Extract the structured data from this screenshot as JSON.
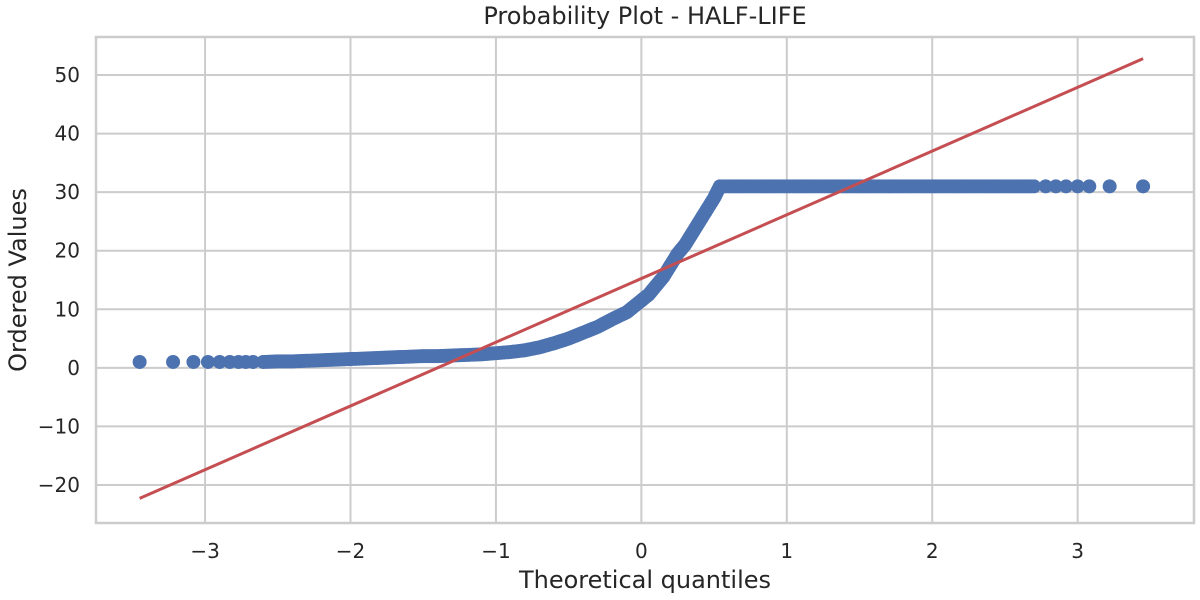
{
  "chart_data": {
    "type": "scatter",
    "title": "Probability Plot - HALF-LIFE",
    "xlabel": "Theoretical quantiles",
    "ylabel": "Ordered Values",
    "xlim": [
      -3.75,
      3.8
    ],
    "ylim": [
      -26.5,
      56.5
    ],
    "xticks": [
      -3,
      -2,
      -1,
      0,
      1,
      2,
      3
    ],
    "yticks": [
      -20,
      -10,
      0,
      10,
      20,
      30,
      40,
      50
    ],
    "grid": true,
    "legend": "none",
    "colors": {
      "points": "#4c72b0",
      "fit_line": "#c44e52",
      "grid": "#cccccc",
      "text": "#262626"
    },
    "series": [
      {
        "kind": "points",
        "x": [
          -3.45,
          -3.22,
          -3.08,
          -2.98,
          -2.9,
          -2.83,
          -2.77,
          -2.72,
          -2.67,
          -2.6,
          -2.5,
          -2.4,
          -2.3,
          -2.2,
          -2.1,
          -2.0,
          -1.9,
          -1.8,
          -1.7,
          -1.6,
          -1.5,
          -1.4,
          -1.3,
          -1.2,
          -1.1,
          -1.0,
          -0.9,
          -0.8,
          -0.7,
          -0.6,
          -0.5,
          -0.4,
          -0.3,
          -0.2,
          -0.1,
          -0.05,
          0.0,
          0.05,
          0.1,
          0.15,
          0.2,
          0.25,
          0.3,
          0.35,
          0.4,
          0.45,
          0.5,
          0.52,
          0.54,
          0.6,
          0.7,
          0.8,
          0.9,
          1.0,
          1.2,
          1.4,
          1.6,
          1.8,
          2.0,
          2.2,
          2.4,
          2.6,
          2.7,
          2.78,
          2.85,
          2.92,
          3.0,
          3.08,
          3.22,
          3.45
        ],
        "y": [
          1.0,
          1.0,
          1.0,
          1.0,
          1.0,
          1.0,
          1.0,
          1.0,
          1.0,
          1.0,
          1.1,
          1.1,
          1.2,
          1.3,
          1.4,
          1.5,
          1.6,
          1.7,
          1.8,
          1.9,
          2.0,
          2.0,
          2.1,
          2.2,
          2.3,
          2.5,
          2.7,
          3.0,
          3.5,
          4.2,
          5.0,
          6.0,
          7.0,
          8.3,
          9.5,
          10.5,
          11.5,
          12.5,
          14.0,
          15.5,
          17.5,
          19.5,
          21.0,
          23.0,
          25.0,
          27.0,
          29.0,
          30.0,
          31.0,
          31.0,
          31.0,
          31.0,
          31.0,
          31.0,
          31.0,
          31.0,
          31.0,
          31.0,
          31.0,
          31.0,
          31.0,
          31.0,
          31.0,
          31.0,
          31.0,
          31.0,
          31.0,
          31.0,
          31.0,
          31.0
        ]
      },
      {
        "kind": "line",
        "x": [
          -3.45,
          3.45
        ],
        "y": [
          -22.3,
          52.8
        ]
      }
    ]
  }
}
